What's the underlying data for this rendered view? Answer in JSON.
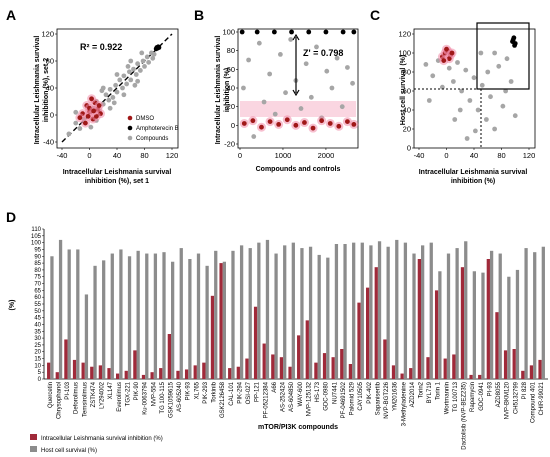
{
  "panels": {
    "A": {
      "label": "A",
      "r2": "R² = 0.922",
      "ylabel_line1": "Intracellular Leishmania survival",
      "ylabel_line2": "inhibition (%), set 2",
      "xlabel_line1": "Intracellular Leishmania survival",
      "xlabel_line2": "inhibition (%), set 1",
      "xticks": [
        "-40",
        "0",
        "40",
        "80",
        "120"
      ],
      "yticks": [
        "-40",
        "0",
        "40",
        "80",
        "120"
      ],
      "legend": [
        "DMSO",
        "Amphoterecin B",
        "Compounds"
      ]
    },
    "B": {
      "label": "B",
      "z": "Z' = 0.798",
      "ylabel_line1": "Intracellular Leishmania survival",
      "ylabel_line2": "inhibition (%)",
      "xlabel": "Compounds and controls",
      "xticks": [
        "0",
        "1000",
        "2000"
      ],
      "yticks": [
        "-20",
        "0",
        "20",
        "40",
        "60",
        "80",
        "100"
      ]
    },
    "C": {
      "label": "C",
      "ylabel": "Host cell survival (%)",
      "xlabel_line1": "Intracellular Leishmania survival",
      "xlabel_line2": "inhibition (%)",
      "xticks": [
        "-40",
        "0",
        "40",
        "80",
        "120"
      ],
      "yticks": [
        "0",
        "20",
        "40",
        "60",
        "80",
        "100",
        "120"
      ]
    },
    "D": {
      "label": "D",
      "ylabel": "(%)",
      "xlabel": "mTOR/PI3K compounds",
      "yticks": [
        "0",
        "5",
        "10",
        "15",
        "20",
        "25",
        "30",
        "35",
        "40",
        "45",
        "50",
        "55",
        "60",
        "65",
        "70",
        "75",
        "80",
        "85",
        "90",
        "95",
        "100",
        "105",
        "110"
      ],
      "legend": [
        "Intracellular Leishmania survival inhibition (%)",
        "Host cell survival (%)"
      ]
    }
  },
  "colors": {
    "dmso": "#a01818",
    "dmso_glow": "#f08aa8",
    "ampho": "#000000",
    "compounds": "#a6a6a6",
    "bar_inhibition": "#a02a3a",
    "bar_host": "#8c8c8c"
  },
  "chart_data": [
    {
      "type": "scatter",
      "title": "",
      "xlabel": "Intracellular Leishmania survival inhibition (%), set 1",
      "ylabel": "Intracellular Leishmania survival inhibition (%), set 2",
      "xlim": [
        -40,
        120
      ],
      "ylim": [
        -40,
        120
      ],
      "annotation": "R² = 0.922",
      "series": [
        {
          "name": "DMSO",
          "points": [
            [
              -10,
              2
            ],
            [
              0,
              5
            ],
            [
              5,
              -6
            ],
            [
              12,
              8
            ],
            [
              -4,
              14
            ],
            [
              8,
              18
            ],
            [
              -14,
              -4
            ],
            [
              3,
              24
            ],
            [
              16,
              2
            ],
            [
              -6,
              -12
            ],
            [
              10,
              -2
            ],
            [
              0,
              10
            ],
            [
              -2,
              -2
            ],
            [
              6,
              6
            ],
            [
              14,
              14
            ]
          ]
        },
        {
          "name": "Amphoterecin B",
          "points": [
            [
              98,
              100
            ],
            [
              99,
              99
            ],
            [
              100,
              101
            ],
            [
              97,
              98
            ],
            [
              101,
              100
            ]
          ]
        },
        {
          "name": "Compounds",
          "points": [
            [
              -30,
              -28
            ],
            [
              -20,
              -12
            ],
            [
              -14,
              -20
            ],
            [
              -8,
              -6
            ],
            [
              2,
              -18
            ],
            [
              6,
              10
            ],
            [
              10,
              20
            ],
            [
              14,
              6
            ],
            [
              20,
              16
            ],
            [
              24,
              30
            ],
            [
              28,
              22
            ],
            [
              30,
              38
            ],
            [
              34,
              26
            ],
            [
              38,
              44
            ],
            [
              40,
              34
            ],
            [
              44,
              52
            ],
            [
              48,
              40
            ],
            [
              50,
              58
            ],
            [
              54,
              46
            ],
            [
              58,
              64
            ],
            [
              60,
              52
            ],
            [
              64,
              68
            ],
            [
              68,
              60
            ],
            [
              70,
              76
            ],
            [
              74,
              66
            ],
            [
              78,
              80
            ],
            [
              80,
              72
            ],
            [
              84,
              86
            ],
            [
              86,
              78
            ],
            [
              90,
              92
            ],
            [
              92,
              84
            ],
            [
              94,
              90
            ],
            [
              20,
              40
            ],
            [
              30,
              10
            ],
            [
              50,
              30
            ],
            [
              60,
              80
            ],
            [
              70,
              50
            ],
            [
              40,
              60
            ],
            [
              10,
              -8
            ],
            [
              -20,
              4
            ],
            [
              18,
              36
            ],
            [
              36,
              18
            ],
            [
              56,
              72
            ],
            [
              66,
              44
            ],
            [
              76,
              92
            ]
          ]
        }
      ]
    },
    {
      "type": "scatter",
      "title": "",
      "xlabel": "Compounds and controls",
      "ylabel": "Intracellular Leishmania survival inhibition (%)",
      "xlim": [
        0,
        2700
      ],
      "ylim": [
        -20,
        105
      ],
      "annotation": "Z' = 0.798",
      "series": [
        {
          "name": "DMSO",
          "points": [
            [
              100,
              2
            ],
            [
              300,
              5
            ],
            [
              500,
              -2
            ],
            [
              700,
              4
            ],
            [
              900,
              1
            ],
            [
              1100,
              6
            ],
            [
              1300,
              0
            ],
            [
              1500,
              3
            ],
            [
              1700,
              -3
            ],
            [
              1900,
              5
            ],
            [
              2100,
              2
            ],
            [
              2300,
              -1
            ],
            [
              2500,
              4
            ],
            [
              2650,
              1
            ]
          ]
        },
        {
          "name": "Amphoterecin B",
          "points": [
            [
              50,
              100
            ],
            [
              400,
              100
            ],
            [
              800,
              100
            ],
            [
              1200,
              100
            ],
            [
              1600,
              100
            ],
            [
              2000,
              100
            ],
            [
              2400,
              100
            ],
            [
              2650,
              100
            ]
          ]
        },
        {
          "name": "Compounds",
          "points": [
            [
              80,
              40
            ],
            [
              200,
              70
            ],
            [
              320,
              -12
            ],
            [
              450,
              88
            ],
            [
              560,
              25
            ],
            [
              690,
              55
            ],
            [
              820,
              12
            ],
            [
              940,
              76
            ],
            [
              1060,
              35
            ],
            [
              1180,
              92
            ],
            [
              1300,
              48
            ],
            [
              1420,
              18
            ],
            [
              1540,
              66
            ],
            [
              1660,
              30
            ],
            [
              1780,
              84
            ],
            [
              1900,
              8
            ],
            [
              2020,
              58
            ],
            [
              2140,
              40
            ],
            [
              2260,
              72
            ],
            [
              2380,
              20
            ],
            [
              2500,
              62
            ],
            [
              2620,
              45
            ]
          ]
        }
      ]
    },
    {
      "type": "scatter",
      "title": "",
      "xlabel": "Intracellular Leishmania survival inhibition (%)",
      "ylabel": "Host cell survival (%)",
      "xlim": [
        -40,
        120
      ],
      "ylim": [
        0,
        120
      ],
      "series": [
        {
          "name": "DMSO",
          "points": [
            [
              -6,
              96
            ],
            [
              -2,
              100
            ],
            [
              2,
              102
            ],
            [
              6,
              98
            ],
            [
              0,
              104
            ],
            [
              4,
              94
            ],
            [
              8,
              100
            ],
            [
              -4,
              92
            ]
          ]
        },
        {
          "name": "Amphoterecin B",
          "points": [
            [
              96,
              112
            ],
            [
              98,
              116
            ],
            [
              100,
              110
            ],
            [
              97,
              114
            ],
            [
              99,
              108
            ]
          ]
        },
        {
          "name": "Compounds",
          "points": [
            [
              -30,
              88
            ],
            [
              -20,
              76
            ],
            [
              -12,
              92
            ],
            [
              -6,
              64
            ],
            [
              4,
              84
            ],
            [
              10,
              70
            ],
            [
              16,
              90
            ],
            [
              22,
              60
            ],
            [
              28,
              82
            ],
            [
              34,
              50
            ],
            [
              40,
              74
            ],
            [
              46,
              40
            ],
            [
              52,
              66
            ],
            [
              58,
              30
            ],
            [
              64,
              54
            ],
            [
              70,
              20
            ],
            [
              76,
              86
            ],
            [
              82,
              44
            ],
            [
              88,
              94
            ],
            [
              94,
              70
            ],
            [
              100,
              34
            ],
            [
              20,
              40
            ],
            [
              30,
              10
            ],
            [
              50,
              100
            ],
            [
              60,
              80
            ],
            [
              70,
              100
            ],
            [
              -25,
              50
            ],
            [
              12,
              30
            ],
            [
              42,
              18
            ],
            [
              86,
              60
            ]
          ]
        }
      ]
    },
    {
      "type": "bar",
      "title": "",
      "xlabel": "mTOR/PI3K compounds",
      "ylabel": "(%)",
      "ylim": [
        0,
        110
      ],
      "categories": [
        "Quercetin",
        "Chrysophanol",
        "PI-103",
        "Deforolimus",
        "Temsirolimus",
        "ZSTK474",
        "LY294002",
        "XL147",
        "Everolimus",
        "TGX-221",
        "PIK-90",
        "Ku-0063794",
        "NVP-554",
        "TG 100-115",
        "GSK1059615",
        "AS-605240",
        "PIK-93",
        "XL765",
        "PIK-293",
        "Torkinib",
        "GSK2126458",
        "CAL-101",
        "PIK-294",
        "OSI-027",
        "PP-121",
        "PF-05212384",
        "A66",
        "AS-252424",
        "AS-604850",
        "WAY-600",
        "NVP-125132",
        "HS-173",
        "GDC-0980",
        "NU7441",
        "PF-04691502",
        "Palomid 529",
        "CAY10505",
        "PIK-402",
        "Sapanisertib",
        "NVP-BGT226",
        "YM201636",
        "3-Methyladenine",
        "AZD2014",
        "Torin2",
        "BYL719",
        "Torin 1",
        "Wortmannin",
        "TG 100713",
        "Dactolisib (NVP-BEZ235)",
        "Rapamycin",
        "GDC-0941",
        "PI-93",
        "AZD8055",
        "NVP-BKM120",
        "CH5132799",
        "PI 828",
        "Compound 401",
        "CHIR-99021"
      ],
      "series": [
        {
          "name": "Intracellular Leishmania survival inhibition (%)",
          "values": [
            12,
            5,
            29,
            14,
            12,
            9,
            10,
            8,
            4,
            6,
            21,
            3,
            5,
            8,
            33,
            6,
            7,
            10,
            12,
            61,
            85,
            8,
            9,
            15,
            53,
            26,
            18,
            16,
            9,
            32,
            43,
            12,
            19,
            16,
            22,
            11,
            56,
            67,
            82,
            29,
            10,
            4,
            8,
            88,
            16,
            65,
            15,
            18,
            82,
            3,
            3,
            88,
            49,
            21,
            22,
            6,
            10,
            14
          ]
        },
        {
          "name": "Host cell survival (%)",
          "values": [
            90,
            102,
            95,
            95,
            62,
            83,
            87,
            92,
            95,
            90,
            94,
            92,
            92,
            93,
            86,
            96,
            88,
            92,
            83,
            94,
            86,
            94,
            98,
            96,
            100,
            102,
            92,
            98,
            100,
            96,
            97,
            91,
            89,
            99,
            99,
            100,
            100,
            98,
            101,
            97,
            102,
            100,
            92,
            98,
            100,
            79,
            92,
            96,
            101,
            79,
            78,
            94,
            92,
            75,
            80,
            96,
            93,
            97
          ]
        }
      ]
    }
  ]
}
